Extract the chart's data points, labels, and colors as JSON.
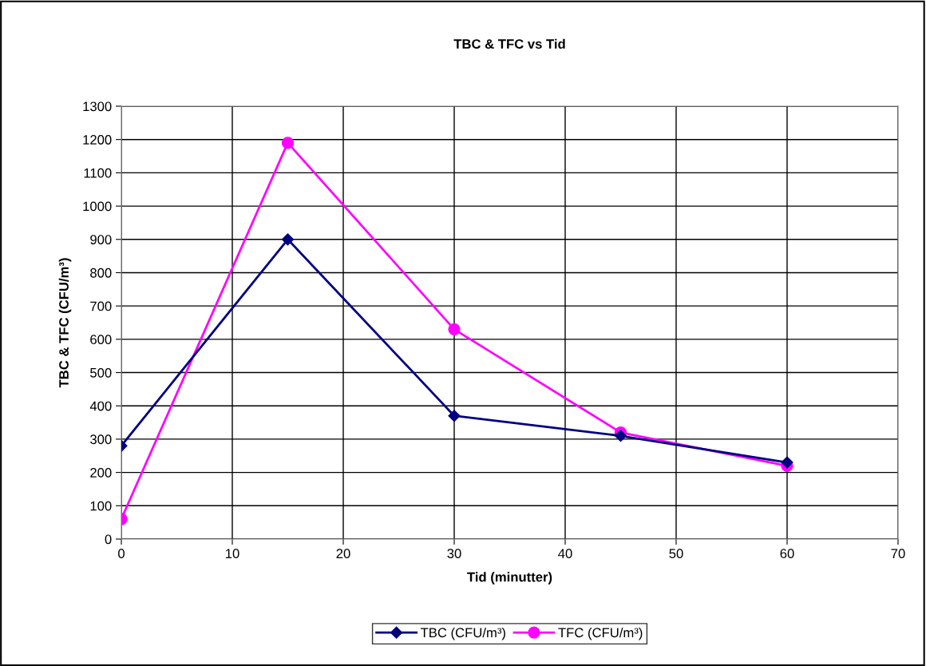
{
  "chart_data": {
    "type": "line",
    "title": "TBC & TFC vs Tid",
    "xlabel": "Tid (minutter)",
    "ylabel": "TBC & TFC (CFU/m³)",
    "x": [
      0,
      15,
      30,
      45,
      60
    ],
    "series": [
      {
        "name": "TBC (CFU/m³)",
        "color": "#000080",
        "marker": "diamond",
        "values": [
          280,
          900,
          370,
          310,
          230
        ]
      },
      {
        "name": "TFC (CFU/m³)",
        "color": "#ff00ff",
        "marker": "circle",
        "values": [
          60,
          1190,
          630,
          320,
          220
        ]
      }
    ],
    "xlim": [
      0,
      70
    ],
    "xticks": [
      0,
      10,
      20,
      30,
      40,
      50,
      60,
      70
    ],
    "ylim": [
      0,
      1300
    ],
    "yticks": [
      0,
      100,
      200,
      300,
      400,
      500,
      600,
      700,
      800,
      900,
      1000,
      1100,
      1200,
      1300
    ],
    "grid": true,
    "legend": "bottom",
    "line_style": "solid"
  }
}
